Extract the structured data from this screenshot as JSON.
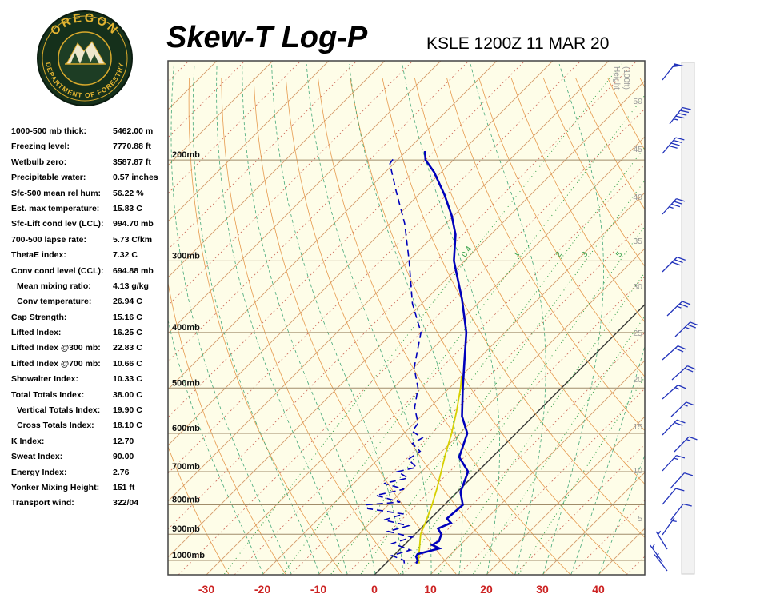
{
  "header": {
    "title": "Skew-T Log-P",
    "station": "KSLE 1200Z 11 MAR 20",
    "logo": {
      "top_text": "OREGON",
      "bottom_text": "DEPARTMENT OF FORESTRY",
      "ring_color": "#d8a92c",
      "bg_color": "#15301b"
    }
  },
  "stats": {
    "rows": [
      {
        "label": "1000-500 mb thick:",
        "value": "5462.00 m",
        "indent": false
      },
      {
        "label": "Freezing level:",
        "value": "7770.88 ft",
        "indent": false
      },
      {
        "label": "Wetbulb zero:",
        "value": "3587.87 ft",
        "indent": false
      },
      {
        "label": "Precipitable water:",
        "value": "0.57 inches",
        "indent": false
      },
      {
        "label": "Sfc-500 mean rel hum:",
        "value": "56.22 %",
        "indent": false
      },
      {
        "label": "Est. max temperature:",
        "value": "15.83 C",
        "indent": false
      },
      {
        "label": "Sfc-Lift cond lev (LCL):",
        "value": "994.70 mb",
        "indent": false
      },
      {
        "label": "700-500 lapse rate:",
        "value": "5.73 C/km",
        "indent": false
      },
      {
        "label": "ThetaE index:",
        "value": "7.32 C",
        "indent": false
      },
      {
        "label": "Conv cond level (CCL):",
        "value": "694.88 mb",
        "indent": false
      },
      {
        "label": "Mean mixing ratio:",
        "value": "4.13 g/kg",
        "indent": true
      },
      {
        "label": "Conv temperature:",
        "value": "26.94 C",
        "indent": true
      },
      {
        "label": "Cap Strength:",
        "value": "15.16 C",
        "indent": false
      },
      {
        "label": "Lifted Index:",
        "value": "16.25 C",
        "indent": false
      },
      {
        "label": "Lifted Index @300 mb:",
        "value": "22.83 C",
        "indent": false
      },
      {
        "label": "Lifted Index @700 mb:",
        "value": "10.66 C",
        "indent": false
      },
      {
        "label": "Showalter Index:",
        "value": "10.33 C",
        "indent": false
      },
      {
        "label": "Total Totals Index:",
        "value": "38.00 C",
        "indent": false
      },
      {
        "label": "Vertical Totals Index:",
        "value": "19.90 C",
        "indent": true
      },
      {
        "label": "Cross Totals Index:",
        "value": "18.10 C",
        "indent": true
      },
      {
        "label": "K Index:",
        "value": "12.70",
        "indent": false
      },
      {
        "label": "Sweat Index:",
        "value": "90.00",
        "indent": false
      },
      {
        "label": "Energy Index:",
        "value": "2.76",
        "indent": false
      },
      {
        "label": "Yonker Mixing Height:",
        "value": "151 ft",
        "indent": false
      },
      {
        "label": "Transport wind:",
        "value": "322/04",
        "indent": false
      }
    ]
  },
  "chart_data": {
    "type": "skewt",
    "title": "Skew-T Log-P sounding KSLE 1200Z 11 MAR 20",
    "pressure_levels": [
      200,
      300,
      400,
      500,
      600,
      700,
      800,
      900,
      1000
    ],
    "pressure_label_suffix": "mb",
    "temp_axis": {
      "ticks": [
        -30,
        -20,
        -10,
        0,
        10,
        20,
        30,
        40
      ],
      "units": "C",
      "color": "#cc2222"
    },
    "height_axis": {
      "label_1": "Height",
      "label_2": "(100ft)",
      "ticks": [
        [
          50,
          55
        ],
        [
          45,
          115
        ],
        [
          40,
          175
        ],
        [
          35,
          230
        ],
        [
          30,
          287
        ],
        [
          25,
          345
        ],
        [
          20,
          403
        ],
        [
          15,
          462
        ],
        [
          10,
          517
        ],
        [
          5,
          577
        ]
      ]
    },
    "isotherms": {
      "step": 10
    },
    "dry_adiabats": {
      "min": -30,
      "max": 160,
      "step": 10
    },
    "moist_adiabats": {
      "min": -20,
      "max": 40,
      "step": 5
    },
    "mixing_ratio": {
      "lines": [
        0.4,
        1,
        2,
        3,
        5,
        8,
        12,
        20
      ],
      "labels": [
        "0.4",
        "1",
        "2",
        "3",
        "5"
      ]
    },
    "temperature_profile": [
      [
        1012,
        5.4
      ],
      [
        1000,
        5.2
      ],
      [
        985,
        4.2
      ],
      [
        975,
        4.0
      ],
      [
        953,
        6.9
      ],
      [
        940,
        5.0
      ],
      [
        925,
        5.5
      ],
      [
        900,
        4.7
      ],
      [
        880,
        3.1
      ],
      [
        860,
        4.4
      ],
      [
        845,
        2.9
      ],
      [
        800,
        3.3
      ],
      [
        760,
        0.6
      ],
      [
        700,
        -1.7
      ],
      [
        660,
        -5.9
      ],
      [
        600,
        -8.7
      ],
      [
        560,
        -12.7
      ],
      [
        500,
        -17.6
      ],
      [
        450,
        -22.0
      ],
      [
        400,
        -26.9
      ],
      [
        350,
        -33.6
      ],
      [
        300,
        -41.9
      ],
      [
        270,
        -46.3
      ],
      [
        250,
        -50.4
      ],
      [
        230,
        -55.4
      ],
      [
        210,
        -61.3
      ],
      [
        200,
        -65.0
      ],
      [
        193,
        -66.7
      ]
    ],
    "dewpoint_profile": [
      [
        1012,
        3.3
      ],
      [
        1000,
        2.7
      ],
      [
        981,
        -0.3
      ],
      [
        959,
        2.0
      ],
      [
        934,
        -2.4
      ],
      [
        911,
        0.0
      ],
      [
        890,
        -5.3
      ],
      [
        870,
        -2.7
      ],
      [
        850,
        -8.1
      ],
      [
        830,
        -5.6
      ],
      [
        812,
        -13.0
      ],
      [
        800,
        -14.1
      ],
      [
        791,
        -8.4
      ],
      [
        770,
        -13.9
      ],
      [
        751,
        -10.0
      ],
      [
        734,
        -14.6
      ],
      [
        718,
        -11.3
      ],
      [
        700,
        -14.3
      ],
      [
        688,
        -11.7
      ],
      [
        666,
        -14.6
      ],
      [
        645,
        -13.9
      ],
      [
        625,
        -16.7
      ],
      [
        611,
        -15.9
      ],
      [
        595,
        -18.9
      ],
      [
        576,
        -19.3
      ],
      [
        541,
        -22.7
      ],
      [
        500,
        -25.6
      ],
      [
        461,
        -29.9
      ],
      [
        400,
        -35.0
      ],
      [
        356,
        -41.7
      ],
      [
        300,
        -49.9
      ],
      [
        258,
        -57.4
      ],
      [
        227,
        -64.6
      ],
      [
        203,
        -70.7
      ],
      [
        198,
        -71.0
      ]
    ],
    "parcel_profile": [
      [
        1012,
        6.0
      ],
      [
        1000,
        5.3
      ],
      [
        950,
        3.2
      ],
      [
        900,
        1.0
      ],
      [
        850,
        -0.5
      ],
      [
        800,
        -2.2
      ],
      [
        750,
        -4.2
      ],
      [
        700,
        -6.5
      ],
      [
        650,
        -9.0
      ],
      [
        600,
        -11.5
      ],
      [
        550,
        -14.5
      ],
      [
        500,
        -18.0
      ],
      [
        476,
        -20.0
      ]
    ],
    "wind_barbs": [
      [
        621,
        25,
        50,
        38
      ],
      [
        630,
        80,
        45,
        38
      ],
      [
        621,
        117,
        40,
        40
      ],
      [
        621,
        193,
        35,
        42
      ],
      [
        621,
        265,
        30,
        45
      ],
      [
        627,
        320,
        25,
        46
      ],
      [
        637,
        346,
        25,
        46
      ],
      [
        621,
        375,
        20,
        48
      ],
      [
        633,
        400,
        20,
        48
      ],
      [
        621,
        424,
        15,
        48
      ],
      [
        632,
        446,
        15,
        46
      ],
      [
        621,
        469,
        20,
        44
      ],
      [
        636,
        490,
        15,
        44
      ],
      [
        621,
        514,
        15,
        42
      ],
      [
        631,
        536,
        10,
        42
      ],
      [
        621,
        556,
        10,
        40
      ],
      [
        631,
        576,
        10,
        38
      ],
      [
        621,
        594,
        5,
        35
      ],
      [
        627,
        612,
        5,
        328
      ],
      [
        621,
        628,
        5,
        324
      ],
      [
        627,
        639,
        4,
        322
      ]
    ],
    "colors": {
      "bg": "#fefde8",
      "isotherm": "#d49a6a",
      "isotherm_zero": "#333333",
      "isotherm_dotted": "#cc6655",
      "dry_adiabat": "#e69a4e",
      "moist_adiabat": "#44a878",
      "mixing": "#2f9e44",
      "pressure_line": "#a08c6a",
      "pressure_label": "#111111",
      "border": "#444444",
      "temperature_trace": "#0000bb",
      "dewpoint_trace": "#0000bb",
      "parcel": "#d6d000",
      "barb": "#2233bb",
      "height_axis": "#999999"
    }
  }
}
